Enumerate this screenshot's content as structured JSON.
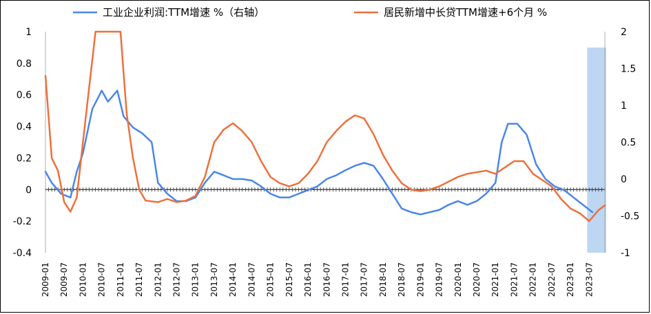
{
  "chart_data": {
    "type": "line",
    "title": "",
    "colors": {
      "series1": "#4A86E8",
      "series2": "#EE6F3B",
      "highlight": "#BDD7F3"
    },
    "legend": {
      "placement": "top"
    },
    "left_axis": {
      "ylim": [
        -0.4,
        1.0
      ],
      "ticks": [
        "1",
        "0.8",
        "0.6",
        "0.4",
        "0.2",
        "0",
        "-0.2",
        "-0.4"
      ]
    },
    "right_axis": {
      "ylim": [
        -1,
        2
      ],
      "ticks": [
        "2",
        "1.5",
        "1",
        "0.5",
        "0",
        "-0.5",
        "-1"
      ]
    },
    "x_ticks": [
      "2009-01",
      "2009-07",
      "2010-01",
      "2010-07",
      "2011-01",
      "2011-07",
      "2012-01",
      "2012-07",
      "2013-01",
      "2013-07",
      "2014-01",
      "2014-07",
      "2015-01",
      "2015-07",
      "2016-01",
      "2016-07",
      "2017-01",
      "2017-07",
      "2018-01",
      "2018-07",
      "2019-01",
      "2019-07",
      "2020-01",
      "2020-07",
      "2021-01",
      "2021-07",
      "2022-01",
      "2022-07",
      "2023-01",
      "2023-07"
    ],
    "highlight_span": [
      "2023-07",
      "2023-12"
    ],
    "series": [
      {
        "name": "工业企业利润:TTM增速 %（右轴）",
        "axis": "right",
        "x": [
          "2009-01",
          "2009-03",
          "2009-06",
          "2009-09",
          "2009-11",
          "2010-01",
          "2010-04",
          "2010-07",
          "2010-09",
          "2010-12",
          "2011-02",
          "2011-05",
          "2011-08",
          "2011-11",
          "2012-01",
          "2012-04",
          "2012-07",
          "2012-10",
          "2013-01",
          "2013-04",
          "2013-07",
          "2013-10",
          "2014-01",
          "2014-04",
          "2014-07",
          "2014-10",
          "2015-01",
          "2015-04",
          "2015-07",
          "2015-10",
          "2016-01",
          "2016-04",
          "2016-07",
          "2016-10",
          "2017-01",
          "2017-04",
          "2017-07",
          "2017-10",
          "2018-01",
          "2018-04",
          "2018-07",
          "2018-10",
          "2019-01",
          "2019-04",
          "2019-07",
          "2019-10",
          "2020-01",
          "2020-04",
          "2020-07",
          "2020-10",
          "2021-01",
          "2021-03",
          "2021-05",
          "2021-08",
          "2021-11",
          "2022-02",
          "2022-05",
          "2022-08",
          "2022-11",
          "2023-02",
          "2023-05",
          "2023-08"
        ],
        "y": [
          0.1,
          -0.05,
          -0.2,
          -0.25,
          0.1,
          0.35,
          0.95,
          1.2,
          1.05,
          1.2,
          0.85,
          0.7,
          0.62,
          0.5,
          -0.05,
          -0.2,
          -0.3,
          -0.3,
          -0.25,
          -0.05,
          0.1,
          0.05,
          0.0,
          0.0,
          -0.02,
          -0.1,
          -0.2,
          -0.25,
          -0.25,
          -0.2,
          -0.15,
          -0.1,
          0.0,
          0.05,
          0.12,
          0.18,
          0.22,
          0.18,
          0.0,
          -0.2,
          -0.4,
          -0.45,
          -0.48,
          -0.45,
          -0.42,
          -0.35,
          -0.3,
          -0.35,
          -0.3,
          -0.2,
          -0.05,
          0.5,
          0.75,
          0.75,
          0.6,
          0.2,
          0.0,
          -0.1,
          -0.15,
          -0.25,
          -0.35,
          -0.45
        ]
      },
      {
        "name": "居民新增中长贷TTM增速+6个月 %",
        "axis": "left",
        "x": [
          "2009-01",
          "2009-03",
          "2009-05",
          "2009-07",
          "2009-09",
          "2009-11",
          "2010-01",
          "2010-03",
          "2010-04",
          "2010-05",
          "2011-01",
          "2011-03",
          "2011-05",
          "2011-07",
          "2011-09",
          "2012-01",
          "2012-04",
          "2012-07",
          "2012-10",
          "2013-01",
          "2013-04",
          "2013-07",
          "2013-10",
          "2014-01",
          "2014-04",
          "2014-07",
          "2014-10",
          "2015-01",
          "2015-04",
          "2015-07",
          "2015-10",
          "2016-01",
          "2016-04",
          "2016-07",
          "2016-10",
          "2017-01",
          "2017-04",
          "2017-07",
          "2017-10",
          "2018-01",
          "2018-04",
          "2018-07",
          "2018-10",
          "2019-01",
          "2019-04",
          "2019-07",
          "2019-10",
          "2020-01",
          "2020-04",
          "2020-07",
          "2020-10",
          "2021-01",
          "2021-04",
          "2021-07",
          "2021-10",
          "2022-01",
          "2022-04",
          "2022-07",
          "2022-10",
          "2023-01",
          "2023-04",
          "2023-07",
          "2023-10",
          "2023-12"
        ],
        "y": [
          0.72,
          0.2,
          0.12,
          -0.08,
          -0.14,
          -0.05,
          0.3,
          0.65,
          0.82,
          1.0,
          1.0,
          0.48,
          0.2,
          0.0,
          -0.07,
          -0.08,
          -0.06,
          -0.08,
          -0.07,
          -0.04,
          0.08,
          0.3,
          0.38,
          0.42,
          0.37,
          0.3,
          0.18,
          0.08,
          0.04,
          0.02,
          0.04,
          0.1,
          0.18,
          0.3,
          0.37,
          0.43,
          0.47,
          0.45,
          0.35,
          0.22,
          0.12,
          0.04,
          0.0,
          -0.01,
          0.0,
          0.02,
          0.05,
          0.08,
          0.1,
          0.11,
          0.12,
          0.1,
          0.14,
          0.18,
          0.18,
          0.1,
          0.06,
          0.02,
          -0.06,
          -0.12,
          -0.15,
          -0.2,
          -0.13,
          -0.1
        ]
      }
    ]
  }
}
